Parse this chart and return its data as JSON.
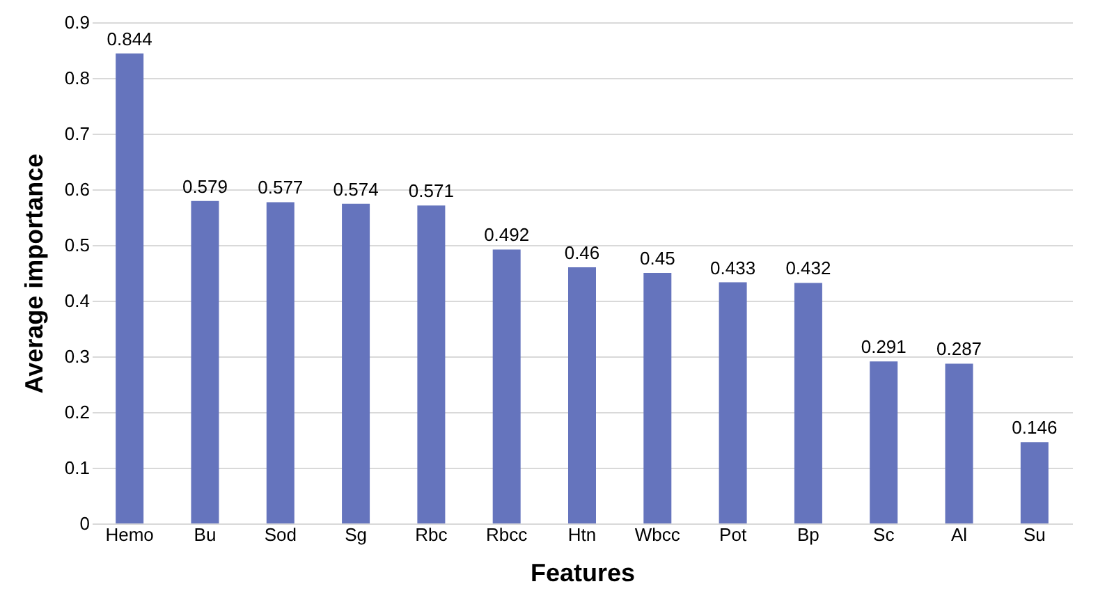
{
  "chart_data": {
    "type": "bar",
    "xlabel": "Features",
    "ylabel": "Average importance",
    "categories": [
      "Hemo",
      "Bu",
      "Sod",
      "Sg",
      "Rbc",
      "Rbcc",
      "Htn",
      "Wbcc",
      "Pot",
      "Bp",
      "Sc",
      "Al",
      "Su"
    ],
    "values": [
      0.844,
      0.579,
      0.577,
      0.574,
      0.571,
      0.492,
      0.46,
      0.45,
      0.433,
      0.432,
      0.291,
      0.287,
      0.146
    ],
    "color": "#6574bd",
    "ylim": [
      0,
      0.9
    ],
    "yticks": [
      0,
      0.1,
      0.2,
      0.3,
      0.4,
      0.5,
      0.6,
      0.7,
      0.8,
      0.9
    ],
    "grid": "y",
    "data_labels": true
  }
}
